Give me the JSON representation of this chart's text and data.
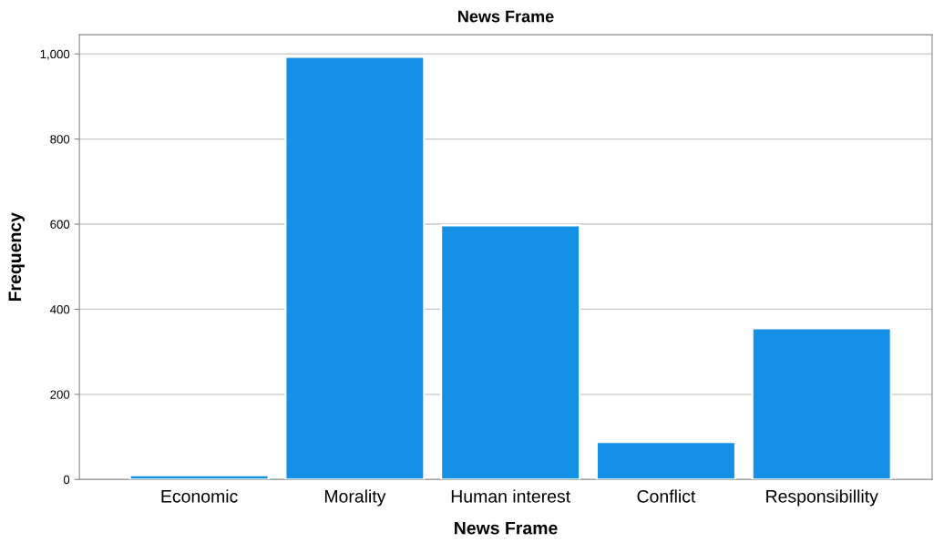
{
  "chart_data": {
    "type": "bar",
    "title": "News Frame",
    "xlabel": "News Frame",
    "ylabel": "Frequency",
    "categories": [
      "Economic",
      "Morality",
      "Human interest",
      "Conflict",
      "Responsibillity"
    ],
    "values": [
      10,
      993,
      597,
      88,
      355
    ],
    "color": "#1491e6",
    "ylim": [
      0,
      1045
    ],
    "yticks": [
      0,
      200,
      400,
      600,
      800,
      {
        "value": 1000,
        "label": "1,000"
      }
    ],
    "grid": "y"
  }
}
